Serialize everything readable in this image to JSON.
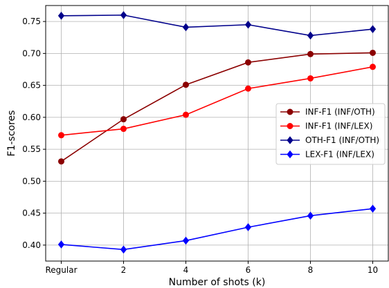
{
  "chart_data": {
    "type": "line",
    "title": "",
    "xlabel": "Number of shots (k)",
    "ylabel": "F1-scores",
    "categories": [
      "Regular",
      "2",
      "4",
      "6",
      "8",
      "10"
    ],
    "ylim": [
      0.375,
      0.775
    ],
    "yticks": [
      0.4,
      0.45,
      0.5,
      0.55,
      0.6,
      0.65,
      0.7,
      0.75
    ],
    "ytick_labels": [
      "0.40",
      "0.45",
      "0.50",
      "0.55",
      "0.60",
      "0.65",
      "0.70",
      "0.75"
    ],
    "grid": true,
    "legend_placement": "center-right",
    "series": [
      {
        "name": "INF-F1 (INF/OTH)",
        "color": "#8b0000",
        "marker": "circle",
        "values": [
          0.531,
          0.597,
          0.651,
          0.686,
          0.699,
          0.701
        ]
      },
      {
        "name": "INF-F1 (INF/LEX)",
        "color": "#ff0000",
        "marker": "circle",
        "values": [
          0.572,
          0.582,
          0.604,
          0.645,
          0.661,
          0.679
        ]
      },
      {
        "name": "OTH-F1 (INF/OTH)",
        "color": "#00008b",
        "marker": "diamond",
        "values": [
          0.759,
          0.76,
          0.741,
          0.745,
          0.728,
          0.738
        ]
      },
      {
        "name": "LEX-F1 (INF/LEX)",
        "color": "#0000ff",
        "marker": "diamond",
        "values": [
          0.401,
          0.393,
          0.407,
          0.428,
          0.446,
          0.457
        ]
      }
    ]
  }
}
